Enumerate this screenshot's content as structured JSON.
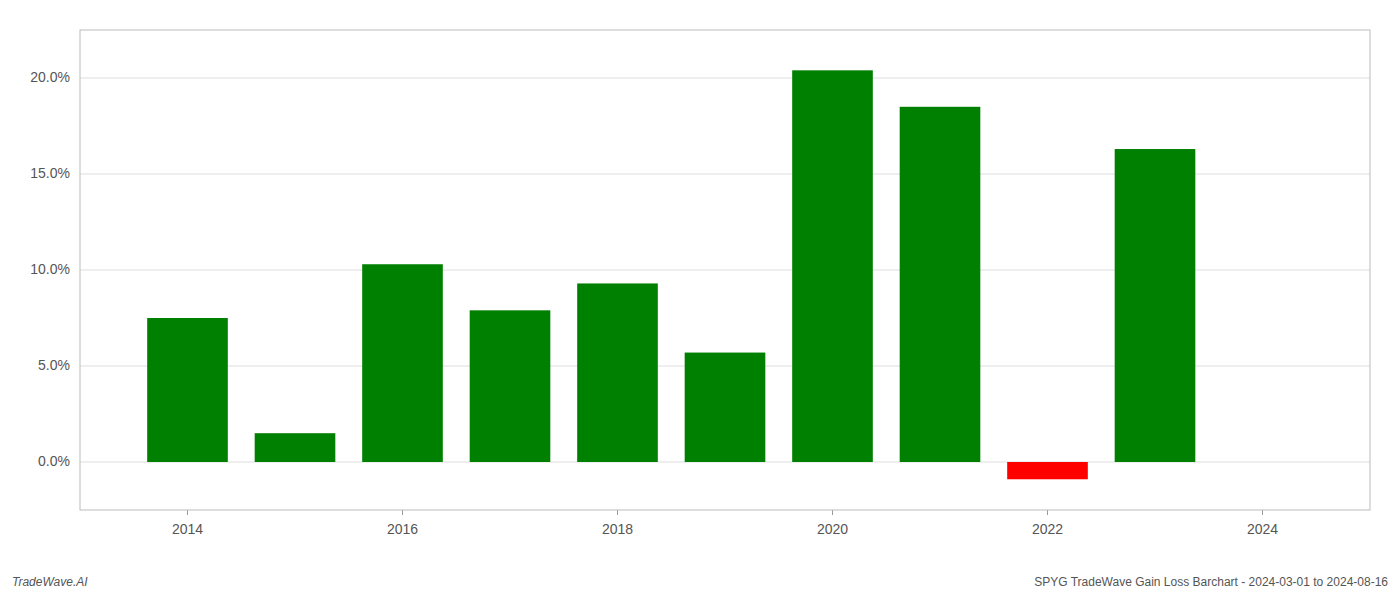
{
  "chart_data": {
    "type": "bar",
    "x": [
      2014,
      2015,
      2016,
      2017,
      2018,
      2019,
      2020,
      2021,
      2022,
      2023
    ],
    "values": [
      0.075,
      0.015,
      0.103,
      0.079,
      0.093,
      0.057,
      0.204,
      0.185,
      -0.009,
      0.163
    ],
    "colors": [
      "#008000",
      "#008000",
      "#008000",
      "#008000",
      "#008000",
      "#008000",
      "#008000",
      "#008000",
      "#ff0000",
      "#008000"
    ],
    "xlim": [
      2013.0,
      2025.0
    ],
    "xticks": [
      2014,
      2016,
      2018,
      2020,
      2022,
      2024
    ],
    "ylim": [
      -0.025,
      0.225
    ],
    "yticks": [
      {
        "value": 0.0,
        "label": "0.0%"
      },
      {
        "value": 0.05,
        "label": "5.0%"
      },
      {
        "value": 0.1,
        "label": "10.0%"
      },
      {
        "value": 0.15,
        "label": "15.0%"
      },
      {
        "value": 0.2,
        "label": "20.0%"
      }
    ],
    "grid": true,
    "annotations": [
      "TradeWave.AI",
      "SPYG TradeWave Gain Loss Barchart - 2024-03-01 to 2024-08-16"
    ]
  }
}
